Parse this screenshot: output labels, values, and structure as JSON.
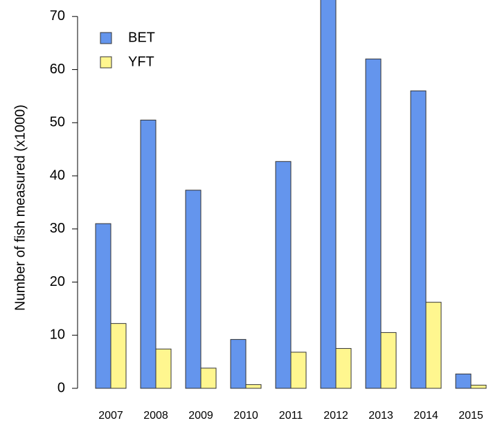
{
  "chart_data": {
    "type": "bar",
    "y_label": "Number of fish measured (x1000)",
    "categories": [
      "2007",
      "2008",
      "2009",
      "2010",
      "2011",
      "2012",
      "2013",
      "2014",
      "2015"
    ],
    "series": [
      {
        "name": "BET",
        "color": "#6495ed",
        "values": [
          31.0,
          50.5,
          37.3,
          9.2,
          42.7,
          76,
          62.0,
          56.0,
          2.7
        ]
      },
      {
        "name": "YFT",
        "color": "#fff68f",
        "values": [
          12.2,
          7.4,
          3.8,
          0.7,
          6.8,
          7.5,
          10.5,
          16.2,
          0.6
        ]
      }
    ],
    "ylim": [
      0,
      73.1
    ],
    "yticks": [
      0,
      10,
      20,
      30,
      40,
      50,
      60,
      70
    ],
    "legend": "top-left"
  }
}
